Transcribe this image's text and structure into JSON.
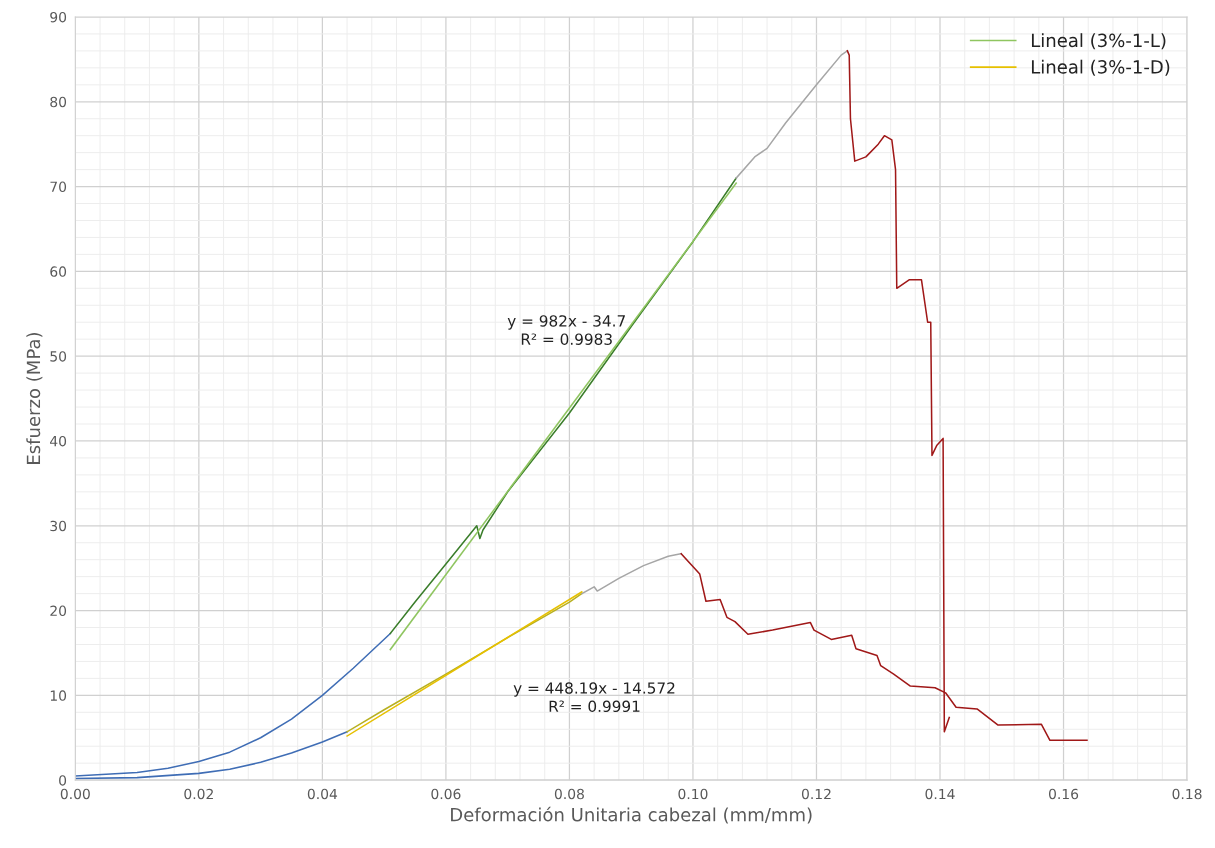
{
  "chart_data": {
    "type": "line",
    "xlabel": "Deformación Unitaria cabezal (mm/mm)",
    "ylabel": "Esfuerzo (MPa)",
    "xlim": [
      0,
      0.18
    ],
    "ylim": [
      0,
      90
    ],
    "xticks": [
      {
        "value": 0,
        "label": "0.00"
      },
      {
        "value": 0.02,
        "label": "0.02"
      },
      {
        "value": 0.04,
        "label": "0.04"
      },
      {
        "value": 0.06,
        "label": "0.06"
      },
      {
        "value": 0.08,
        "label": "0.08"
      },
      {
        "value": 0.1,
        "label": "0.10"
      },
      {
        "value": 0.12,
        "label": "0.12"
      },
      {
        "value": 0.14,
        "label": "0.14"
      },
      {
        "value": 0.16,
        "label": "0.16"
      },
      {
        "value": 0.18,
        "label": "0.18"
      }
    ],
    "yticks": [
      0,
      10,
      20,
      30,
      40,
      50,
      60,
      70,
      80,
      90
    ],
    "grid": true,
    "legend": "top right",
    "marker": "none",
    "line_style": "solid",
    "series": [
      {
        "color": "#3f6db5",
        "x": [
          0,
          0.005,
          0.01,
          0.015,
          0.02,
          0.025,
          0.03,
          0.035,
          0.04,
          0.045,
          0.051
        ],
        "values": [
          0.5,
          0.7,
          0.9,
          1.4,
          2.2,
          3.3,
          5,
          7.2,
          10,
          13.2,
          17.3
        ]
      },
      {
        "color": "#3a7d2a",
        "x": [
          0.051,
          0.055,
          0.06,
          0.065,
          0.0655,
          0.066,
          0.07,
          0.08,
          0.09,
          0.1,
          0.107
        ],
        "values": [
          17.3,
          21,
          25.5,
          30,
          28.5,
          29.5,
          34,
          43.3,
          53.5,
          63.5,
          71
        ]
      },
      {
        "color": "#a6a6a6",
        "x": [
          0.107,
          0.11,
          0.112,
          0.115,
          0.12,
          0.124,
          0.125
        ],
        "values": [
          71,
          73.5,
          74.5,
          77.5,
          82,
          85.5,
          86
        ]
      },
      {
        "color": "#a01818",
        "x": [
          0.125,
          0.1253,
          0.1255,
          0.1262,
          0.128,
          0.13,
          0.131,
          0.1322,
          0.1328,
          0.133,
          0.135,
          0.137,
          0.138,
          0.1385,
          0.1387,
          0.1395,
          0.1405,
          0.1407,
          0.1415
        ],
        "values": [
          86,
          85.5,
          78,
          73,
          73.5,
          75,
          76,
          75.5,
          72,
          58,
          59,
          59,
          54,
          54,
          38.3,
          39.5,
          40.3,
          5.7,
          7.4
        ]
      },
      {
        "color": "#3f6db5",
        "x": [
          0,
          0.01,
          0.02,
          0.025,
          0.03,
          0.035,
          0.04,
          0.044
        ],
        "values": [
          0.2,
          0.3,
          0.8,
          1.3,
          2.1,
          3.2,
          4.5,
          5.7
        ]
      },
      {
        "color": "#b8b020",
        "x": [
          0.044,
          0.05,
          0.06,
          0.07,
          0.08,
          0.082
        ],
        "values": [
          5.7,
          8.3,
          12.5,
          16.8,
          21,
          22
        ]
      },
      {
        "color": "#a6a6a6",
        "x": [
          0.082,
          0.084,
          0.0845,
          0.088,
          0.092,
          0.096,
          0.0981
        ],
        "values": [
          22,
          22.8,
          22.3,
          23.8,
          25.3,
          26.4,
          26.7
        ]
      },
      {
        "color": "#a01818",
        "x": [
          0.0981,
          0.1011,
          0.1021,
          0.1044,
          0.1055,
          0.1068,
          0.1089,
          0.1129,
          0.119,
          0.1196,
          0.1224,
          0.1257,
          0.1264,
          0.1298,
          0.1304,
          0.1325,
          0.1352,
          0.1392,
          0.1409,
          0.1426,
          0.146,
          0.1494,
          0.1564,
          0.1578,
          0.1638
        ],
        "values": [
          26.7,
          24.3,
          21.1,
          21.3,
          19.2,
          18.7,
          17.2,
          17.7,
          18.6,
          17.7,
          16.6,
          17.1,
          15.5,
          14.7,
          13.5,
          12.5,
          11.1,
          10.9,
          10.3,
          8.6,
          8.4,
          6.5,
          6.6,
          4.7,
          4.7
        ]
      },
      {
        "name": "Lineal (3%-1-L)",
        "color": "#8fc560",
        "x": [
          0.051,
          0.107
        ],
        "values": [
          15.4,
          70.4
        ]
      },
      {
        "name": "Lineal (3%-1-D)",
        "color": "#e6c000",
        "x": [
          0.044,
          0.082
        ],
        "values": [
          5.2,
          22.2
        ]
      }
    ],
    "annotations": [
      "y = 982x - 34.7\nR² = 0.9983",
      "y = 448.19x - 14.572\nR² = 0.9991"
    ]
  }
}
